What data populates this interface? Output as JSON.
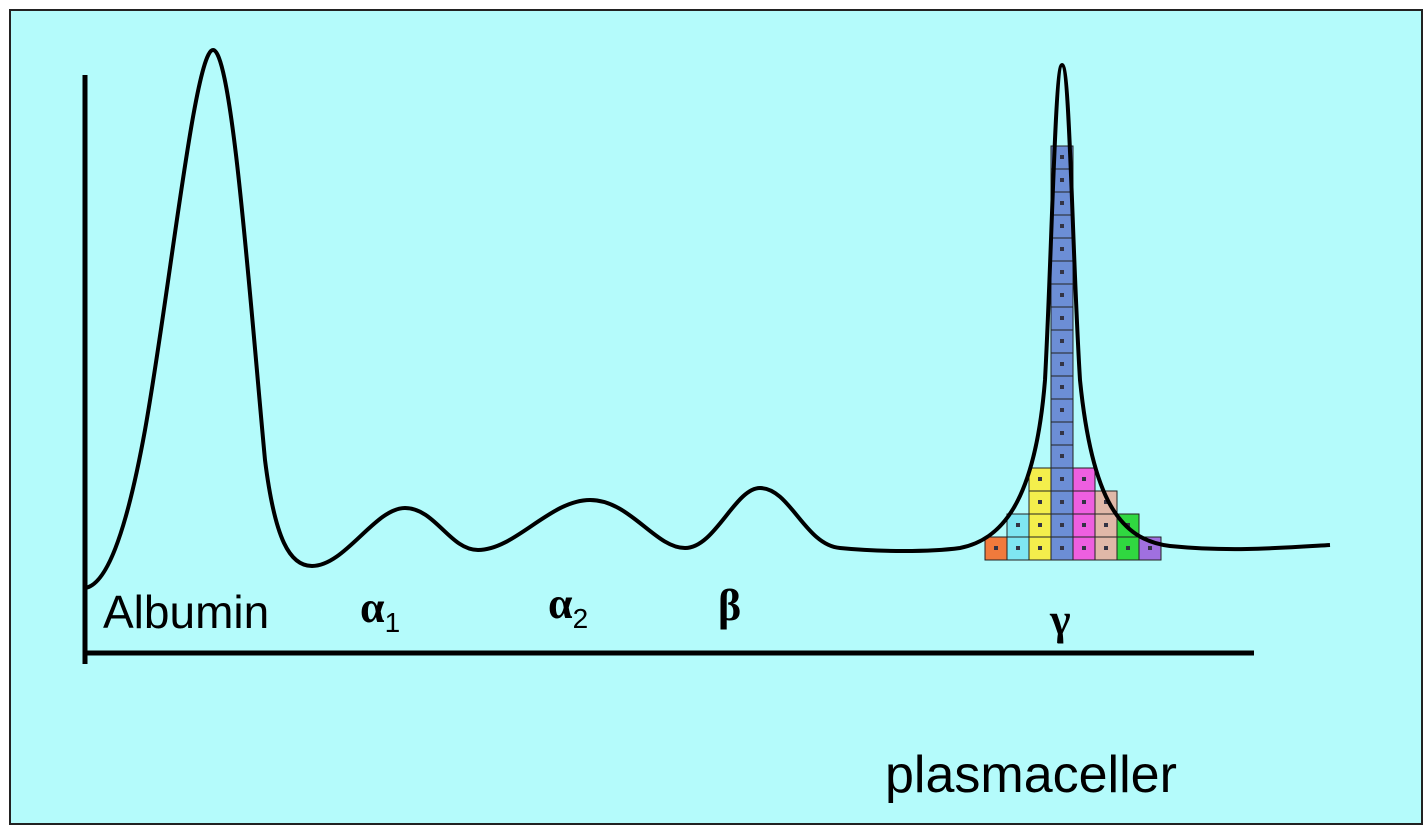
{
  "labels": {
    "albumin": "Albumin",
    "alpha1": {
      "symbol": "α",
      "subscript": "1"
    },
    "alpha2": {
      "symbol": "α",
      "subscript": "2"
    },
    "beta": "β",
    "gamma": "γ"
  },
  "caption": "plasmaceller"
}
